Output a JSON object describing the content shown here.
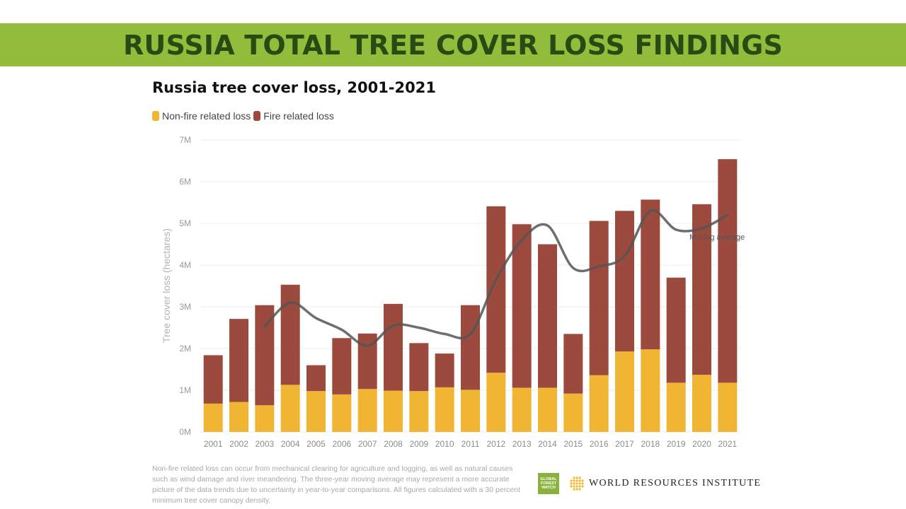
{
  "header": {
    "title": "RUSSIA TOTAL TREE COVER LOSS FINDINGS"
  },
  "colors": {
    "banner_bg": "#91bc3c",
    "banner_text": "#2a4a14",
    "non_fire": "#f0b533",
    "fire": "#9b4a3d",
    "moving_avg": "#555555",
    "grid": "#ececec",
    "axis_text": "#9a9a9a",
    "gfw_green": "#8ab13e",
    "wri_gold": "#f2b731"
  },
  "chart_data": {
    "type": "bar",
    "stacked": true,
    "title": "Russia tree cover loss, 2001-2021",
    "xlabel": "",
    "ylabel": "Tree cover loss (hectares)",
    "ylim": [
      0,
      7000000
    ],
    "yticks": [
      0,
      1000000,
      2000000,
      3000000,
      4000000,
      5000000,
      6000000,
      7000000
    ],
    "ytick_labels": [
      "0M",
      "1M",
      "2M",
      "3M",
      "4M",
      "5M",
      "6M",
      "7M"
    ],
    "grid": true,
    "legend_position": "top-left",
    "categories": [
      "2001",
      "2002",
      "2003",
      "2004",
      "2005",
      "2006",
      "2007",
      "2008",
      "2009",
      "2010",
      "2011",
      "2012",
      "2013",
      "2014",
      "2015",
      "2016",
      "2017",
      "2018",
      "2019",
      "2020",
      "2021"
    ],
    "series": [
      {
        "name": "Non-fire related loss",
        "values": [
          680000,
          720000,
          640000,
          1130000,
          980000,
          900000,
          1030000,
          990000,
          980000,
          1070000,
          1010000,
          1420000,
          1060000,
          1060000,
          920000,
          1360000,
          1930000,
          1980000,
          1180000,
          1370000,
          1180000
        ]
      },
      {
        "name": "Fire related loss",
        "values": [
          1160000,
          1990000,
          2400000,
          2400000,
          620000,
          1350000,
          1330000,
          2080000,
          1150000,
          810000,
          2030000,
          3990000,
          3920000,
          3440000,
          1430000,
          3700000,
          3370000,
          3590000,
          2520000,
          4090000,
          5360000
        ]
      }
    ],
    "moving_average": {
      "name": "Moving average",
      "x": [
        "2003",
        "2004",
        "2005",
        "2006",
        "2007",
        "2008",
        "2009",
        "2010",
        "2011",
        "2012",
        "2013",
        "2014",
        "2015",
        "2016",
        "2017",
        "2018",
        "2019",
        "2020",
        "2021"
      ],
      "values": [
        2530000,
        3100000,
        2730000,
        2450000,
        2070000,
        2550000,
        2500000,
        2350000,
        2350000,
        3650000,
        4600000,
        4950000,
        3930000,
        3970000,
        4220000,
        5300000,
        4850000,
        4880000,
        5200000
      ]
    }
  },
  "footnote": "Non-fire related loss can occur from mechanical clearing for agriculture and logging, as well as natural causes such as wind damage and river meandering. The three-year moving average may represent a more accurate picture of the data trends due to uncertainty in year-to-year comparisons. All figures calculated with a 30 percent minimum tree cover canopy density.",
  "logos": {
    "gfw": {
      "line1": "GLOBAL",
      "line2": "FOREST",
      "line3": "WATCH",
      "icon": "gfw-logo"
    },
    "wri": {
      "name": "WORLD RESOURCES INSTITUTE",
      "icon": "wri-logo"
    }
  }
}
